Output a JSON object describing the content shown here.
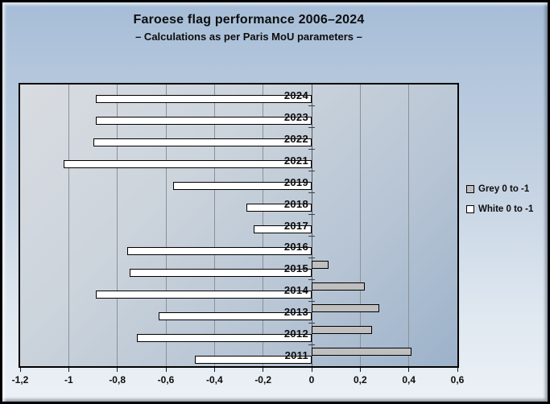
{
  "chart_data": {
    "type": "bar",
    "orientation": "horizontal",
    "title": "Faroese flag performance 2006–2024",
    "subtitle": "– Calculations as per Paris MoU parameters –",
    "categories": [
      "2024",
      "2023",
      "2022",
      "2021",
      "2019",
      "2018",
      "2017",
      "2016",
      "2015",
      "2014",
      "2013",
      "2012",
      "2011"
    ],
    "series": [
      {
        "name": "Grey 0 to -1",
        "color": "#bfbfbf",
        "values": [
          0,
          0,
          0,
          0,
          0,
          0,
          0,
          0,
          0.07,
          0.22,
          0.28,
          0.25,
          0.41
        ]
      },
      {
        "name": "White 0 to -1",
        "color": "#ffffff",
        "values": [
          -0.89,
          -0.89,
          -0.9,
          -1.02,
          -0.57,
          -0.27,
          -0.24,
          -0.76,
          -0.75,
          -0.89,
          -0.63,
          -0.72,
          -0.48
        ]
      }
    ],
    "x_ticks": [
      "-1,2",
      "-1",
      "-0,8",
      "-0,6",
      "-0,4",
      "-0,2",
      "0",
      "0,2",
      "0,4",
      "0,6"
    ],
    "x_tick_values": [
      -1.2,
      -1.0,
      -0.8,
      -0.6,
      -0.4,
      -0.2,
      0,
      0.2,
      0.4,
      0.6
    ],
    "xlim": [
      -1.2,
      0.6
    ],
    "xlabel": "",
    "ylabel": "",
    "gridlines": true,
    "legend_position": "right",
    "colors": {
      "gridline": "#8c9196",
      "zero_axis": "#53585e",
      "plot_border": "#000000",
      "background_top": "#a6bdd7",
      "background_bottom": "#ecf1f6",
      "plot_bg_light": "#d8dce1",
      "plot_bg_dark": "#9cb2ca"
    }
  }
}
